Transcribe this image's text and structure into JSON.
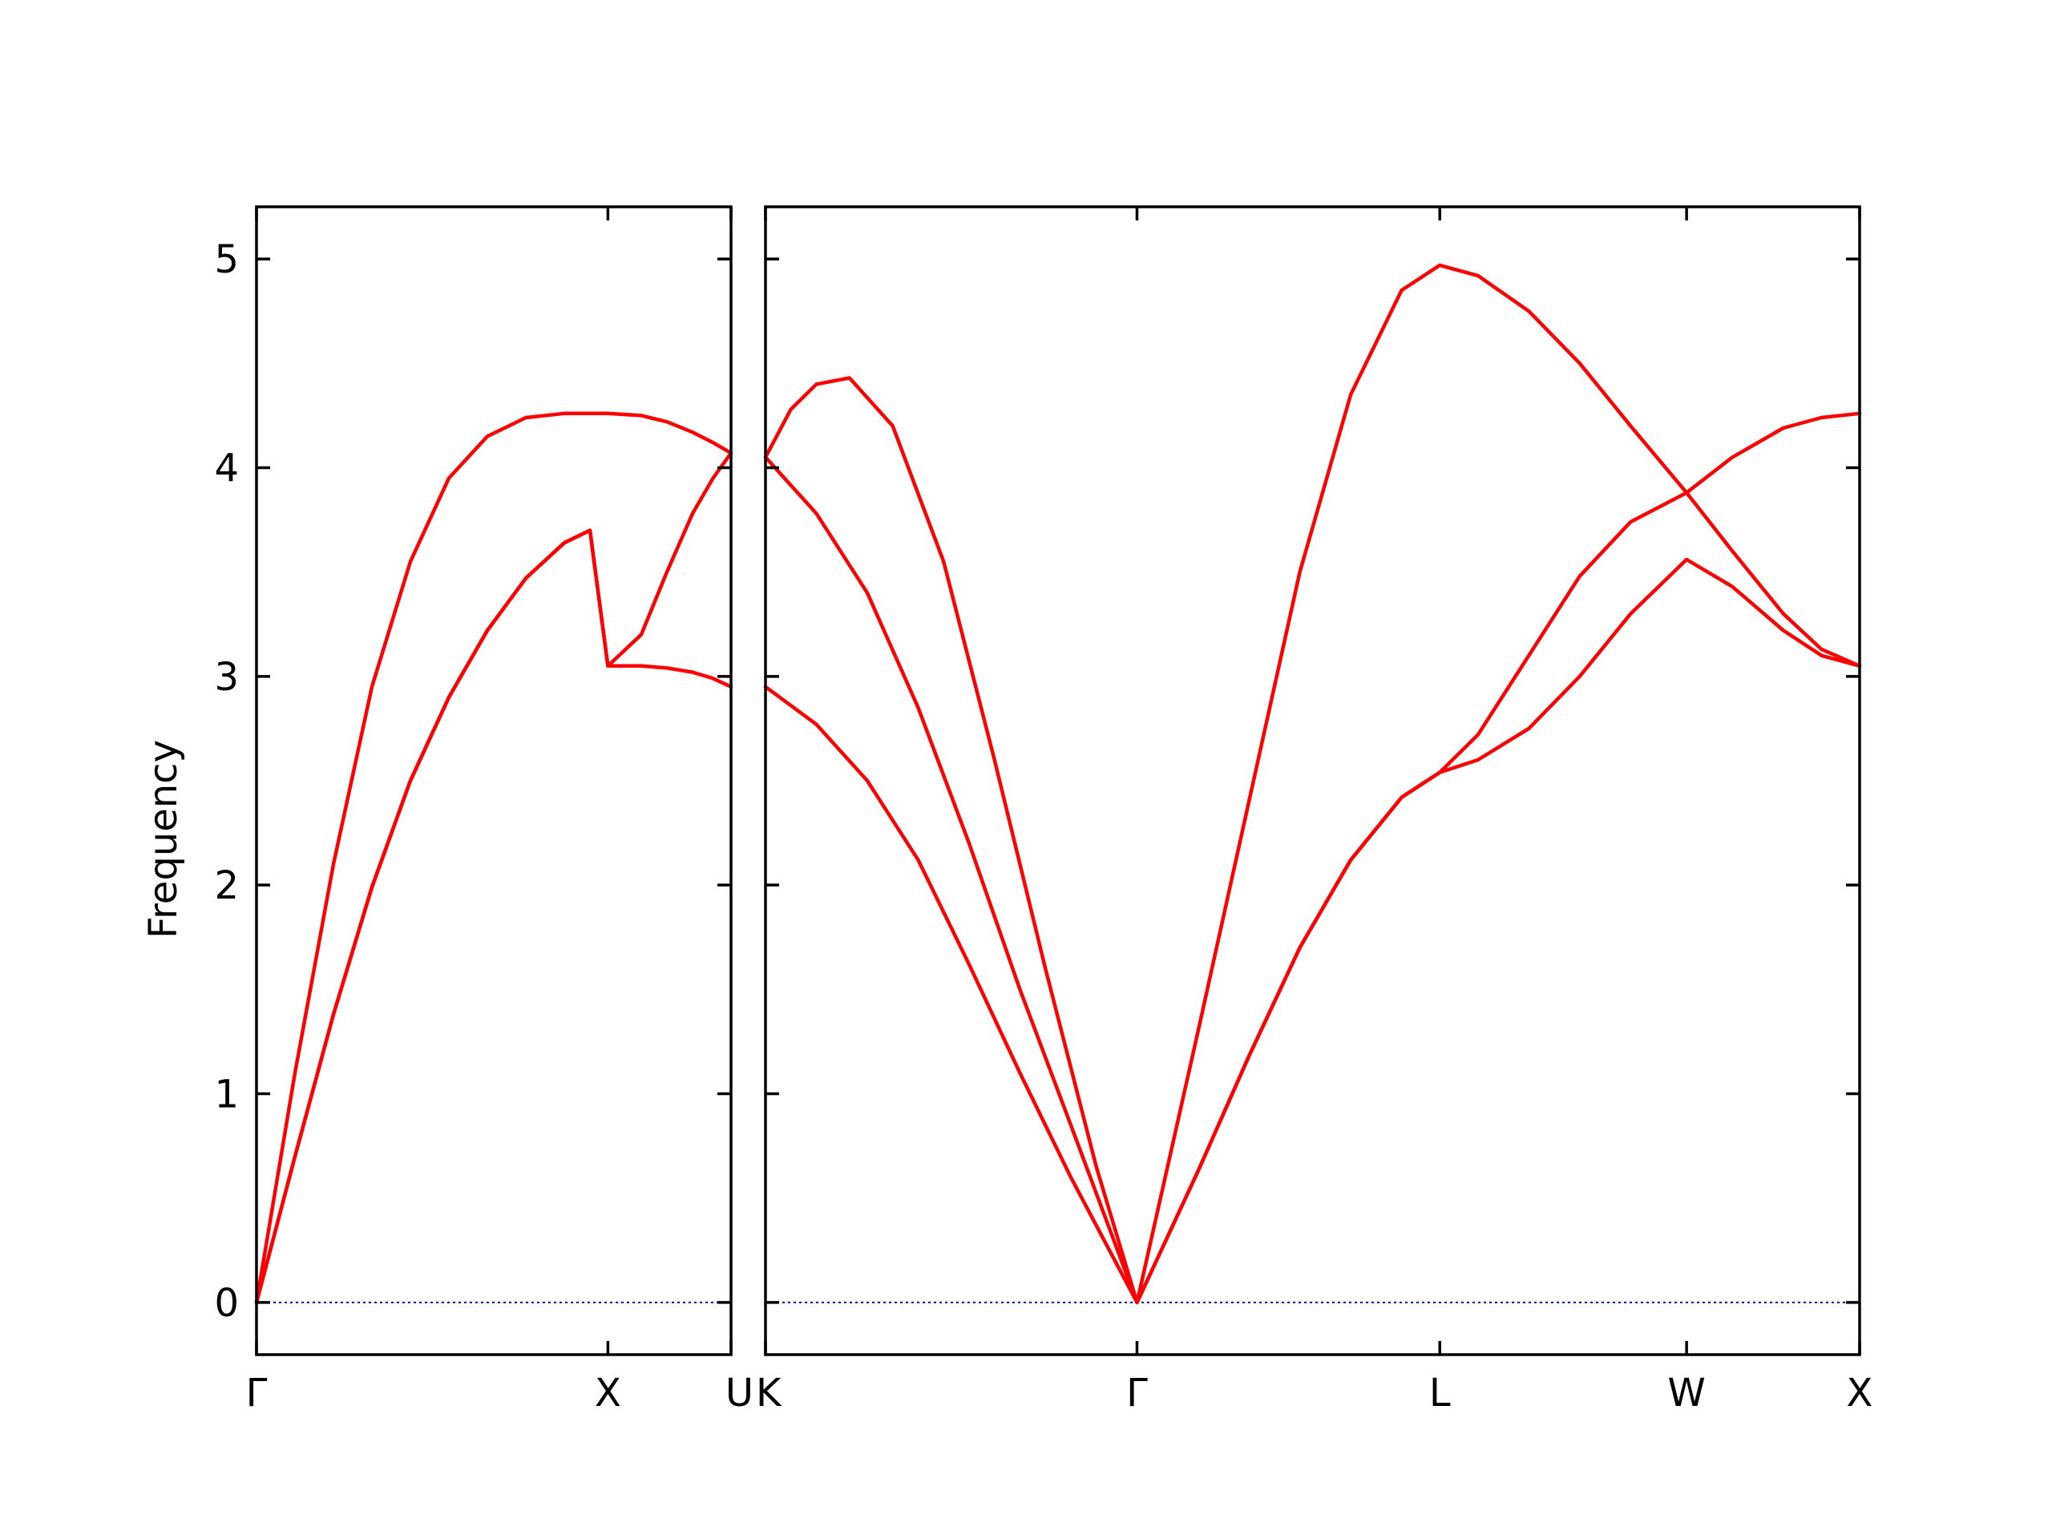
{
  "chart_data": {
    "type": "line",
    "ylabel": "Frequency",
    "ylim": [
      -0.25,
      5.25
    ],
    "yticks": [
      "0",
      "1",
      "2",
      "3",
      "4",
      "5"
    ],
    "colors": {
      "bands": "#ff0000",
      "zero_line": "#0000cc",
      "frame": "#000000"
    },
    "panels": [
      {
        "xlim": [
          0,
          1.85
        ],
        "xticks": [
          {
            "label": "Γ",
            "x": 0
          },
          {
            "label": "X",
            "x": 1.37
          },
          {
            "label": "U",
            "x": 1.85
          }
        ],
        "series": [
          {
            "x": [
              0,
              0.15,
              0.3,
              0.45,
              0.6,
              0.75,
              0.9,
              1.05,
              1.2,
              1.3,
              1.37,
              1.5,
              1.6,
              1.7,
              1.78,
              1.85
            ],
            "y": [
              0,
              0.7,
              1.38,
              1.99,
              2.5,
              2.9,
              3.22,
              3.47,
              3.64,
              3.7,
              3.05,
              3.05,
              3.04,
              3.02,
              2.99,
              2.95
            ]
          },
          {
            "x": [
              0,
              0.15,
              0.3,
              0.45,
              0.6,
              0.75,
              0.9,
              1.05,
              1.2,
              1.3,
              1.37,
              1.5,
              1.6,
              1.7,
              1.78,
              1.85
            ],
            "y": [
              0,
              0.7,
              1.38,
              1.99,
              2.5,
              2.9,
              3.22,
              3.47,
              3.64,
              3.7,
              3.05,
              3.2,
              3.5,
              3.78,
              3.95,
              4.07
            ]
          },
          {
            "x": [
              0,
              0.15,
              0.3,
              0.45,
              0.6,
              0.75,
              0.9,
              1.05,
              1.2,
              1.3,
              1.37,
              1.5,
              1.6,
              1.7,
              1.78,
              1.85
            ],
            "y": [
              0,
              1.1,
              2.1,
              2.95,
              3.55,
              3.95,
              4.15,
              4.24,
              4.26,
              4.26,
              4.26,
              4.25,
              4.22,
              4.17,
              4.12,
              4.07
            ]
          }
        ]
      },
      {
        "xlim": [
          0,
          4.3
        ],
        "xticks": [
          {
            "label": "K",
            "x": 0
          },
          {
            "label": "Γ",
            "x": 1.46
          },
          {
            "label": "L",
            "x": 2.65
          },
          {
            "label": "W",
            "x": 3.62
          },
          {
            "label": "X",
            "x": 4.3
          }
        ],
        "series": [
          {
            "x": [
              0,
              0.2,
              0.4,
              0.6,
              0.8,
              1.0,
              1.2,
              1.46,
              1.7,
              1.9,
              2.1,
              2.3,
              2.5,
              2.65,
              2.8,
              3.0,
              3.2,
              3.4,
              3.62,
              3.8,
              4.0,
              4.15,
              4.3
            ],
            "y": [
              2.95,
              2.77,
              2.5,
              2.12,
              1.62,
              1.1,
              0.6,
              0,
              0.63,
              1.18,
              1.7,
              2.12,
              2.42,
              2.54,
              2.6,
              2.75,
              3.0,
              3.3,
              3.56,
              3.43,
              3.22,
              3.1,
              3.05
            ]
          },
          {
            "x": [
              0,
              0.2,
              0.4,
              0.6,
              0.8,
              1.0,
              1.2,
              1.46,
              1.7,
              1.9,
              2.1,
              2.3,
              2.5,
              2.65,
              2.8,
              3.0,
              3.2,
              3.4,
              3.62,
              3.8,
              4.0,
              4.15,
              4.3
            ],
            "y": [
              4.05,
              3.78,
              3.4,
              2.85,
              2.2,
              1.5,
              0.85,
              0,
              0.63,
              1.18,
              1.7,
              2.12,
              2.42,
              2.54,
              2.72,
              3.1,
              3.48,
              3.74,
              3.88,
              3.6,
              3.3,
              3.13,
              3.05
            ]
          },
          {
            "x": [
              0,
              0.1,
              0.2,
              0.33,
              0.5,
              0.7,
              0.9,
              1.1,
              1.3,
              1.46,
              1.7,
              1.9,
              2.1,
              2.3,
              2.5,
              2.65,
              2.8,
              3.0,
              3.2,
              3.4,
              3.62,
              3.8,
              4.0,
              4.15,
              4.3
            ],
            "y": [
              4.05,
              4.28,
              4.4,
              4.43,
              4.2,
              3.55,
              2.6,
              1.6,
              0.65,
              0,
              1.3,
              2.4,
              3.5,
              4.35,
              4.85,
              4.97,
              4.92,
              4.75,
              4.5,
              4.2,
              3.88,
              4.05,
              4.19,
              4.24,
              4.26
            ]
          }
        ]
      }
    ]
  }
}
